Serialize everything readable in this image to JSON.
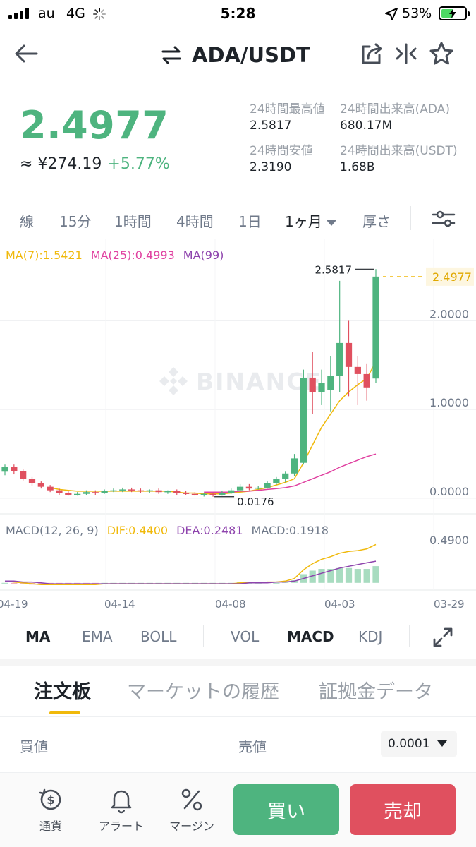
{
  "status_bar": {
    "carrier": "au",
    "network": "4G",
    "time": "5:28",
    "battery_percent": "53%",
    "battery_level": 0.53
  },
  "header": {
    "pair": "ADA/USDT",
    "icons": [
      "back-arrow-icon",
      "swap-icon",
      "share-icon",
      "compare-icon",
      "star-icon"
    ]
  },
  "ticker": {
    "last_price": "2.4977",
    "fiat_price": "≈ ¥274.19",
    "change_percent": "+5.77%",
    "stats": {
      "high_label": "24時間最高値",
      "high_value": "2.5817",
      "low_label": "24時間安値",
      "low_value": "2.3190",
      "vol_base_label": "24時間出来高(ADA)",
      "vol_base_value": "680.17M",
      "vol_quote_label": "24時間出来高(USDT)",
      "vol_quote_value": "1.68B"
    }
  },
  "intervals": {
    "items": [
      "線",
      "15分",
      "1時間",
      "4時間",
      "1日",
      "1ヶ月",
      "厚さ"
    ],
    "active": "1ヶ月"
  },
  "chart": {
    "watermark": "BINANCE",
    "ma_legend": {
      "ma7": "MA(7):1.5421",
      "ma25": "MA(25):0.4993",
      "ma99": "MA(99)"
    },
    "macd_legend": {
      "params": "MACD(12, 26, 9)",
      "dif": "DIF:0.4400",
      "dea": "DEA:0.2481",
      "macd": "MACD:0.1918"
    },
    "price_axis": [
      "2.0000",
      "1.0000",
      "0.0000"
    ],
    "macd_axis": "0.4900",
    "high_marker": "2.5817",
    "low_marker": "0.0176",
    "last_price_tag": "2.4977",
    "date_axis": [
      "04-19",
      "04-14",
      "04-08",
      "04-03",
      "03-29"
    ],
    "colors": {
      "up": "#4eb47f",
      "down": "#e0505f",
      "ma7": "#f0b90b",
      "ma25": "#e040a0",
      "ma99": "#8e44ad"
    }
  },
  "chart_data": {
    "type": "candlestick",
    "price_ylim": [
      0,
      2.6
    ],
    "high": 2.5817,
    "low": 0.0176,
    "last": 2.4977,
    "candles": [
      {
        "o": 0.3,
        "c": 0.35,
        "h": 0.38,
        "l": 0.26
      },
      {
        "o": 0.35,
        "c": 0.31,
        "h": 0.38,
        "l": 0.27
      },
      {
        "o": 0.31,
        "c": 0.22,
        "h": 0.33,
        "l": 0.2
      },
      {
        "o": 0.22,
        "c": 0.17,
        "h": 0.24,
        "l": 0.14
      },
      {
        "o": 0.17,
        "c": 0.13,
        "h": 0.19,
        "l": 0.11
      },
      {
        "o": 0.13,
        "c": 0.09,
        "h": 0.15,
        "l": 0.07
      },
      {
        "o": 0.09,
        "c": 0.06,
        "h": 0.11,
        "l": 0.04
      },
      {
        "o": 0.06,
        "c": 0.04,
        "h": 0.08,
        "l": 0.03
      },
      {
        "o": 0.04,
        "c": 0.05,
        "h": 0.07,
        "l": 0.03
      },
      {
        "o": 0.05,
        "c": 0.07,
        "h": 0.09,
        "l": 0.04
      },
      {
        "o": 0.07,
        "c": 0.06,
        "h": 0.09,
        "l": 0.04
      },
      {
        "o": 0.06,
        "c": 0.08,
        "h": 0.1,
        "l": 0.05
      },
      {
        "o": 0.08,
        "c": 0.09,
        "h": 0.11,
        "l": 0.07
      },
      {
        "o": 0.09,
        "c": 0.1,
        "h": 0.12,
        "l": 0.07
      },
      {
        "o": 0.1,
        "c": 0.09,
        "h": 0.12,
        "l": 0.07
      },
      {
        "o": 0.09,
        "c": 0.08,
        "h": 0.11,
        "l": 0.06
      },
      {
        "o": 0.08,
        "c": 0.09,
        "h": 0.1,
        "l": 0.06
      },
      {
        "o": 0.09,
        "c": 0.07,
        "h": 0.11,
        "l": 0.05
      },
      {
        "o": 0.07,
        "c": 0.08,
        "h": 0.09,
        "l": 0.05
      },
      {
        "o": 0.08,
        "c": 0.06,
        "h": 0.1,
        "l": 0.04
      },
      {
        "o": 0.06,
        "c": 0.05,
        "h": 0.08,
        "l": 0.04
      },
      {
        "o": 0.05,
        "c": 0.04,
        "h": 0.07,
        "l": 0.03
      },
      {
        "o": 0.04,
        "c": 0.05,
        "h": 0.06,
        "l": 0.02
      },
      {
        "o": 0.05,
        "c": 0.04,
        "h": 0.06,
        "l": 0.0176
      },
      {
        "o": 0.04,
        "c": 0.06,
        "h": 0.08,
        "l": 0.03
      },
      {
        "o": 0.06,
        "c": 0.09,
        "h": 0.11,
        "l": 0.05
      },
      {
        "o": 0.09,
        "c": 0.13,
        "h": 0.16,
        "l": 0.08
      },
      {
        "o": 0.13,
        "c": 0.11,
        "h": 0.16,
        "l": 0.09
      },
      {
        "o": 0.11,
        "c": 0.12,
        "h": 0.14,
        "l": 0.1
      },
      {
        "o": 0.12,
        "c": 0.17,
        "h": 0.19,
        "l": 0.11
      },
      {
        "o": 0.17,
        "c": 0.22,
        "h": 0.24,
        "l": 0.15
      },
      {
        "o": 0.22,
        "c": 0.28,
        "h": 0.3,
        "l": 0.18
      },
      {
        "o": 0.28,
        "c": 0.45,
        "h": 0.5,
        "l": 0.25
      },
      {
        "o": 0.4,
        "c": 1.36,
        "h": 1.45,
        "l": 0.38
      },
      {
        "o": 1.36,
        "c": 1.2,
        "h": 1.65,
        "l": 0.95
      },
      {
        "o": 1.2,
        "c": 1.3,
        "h": 1.45,
        "l": 1.05
      },
      {
        "o": 1.22,
        "c": 1.38,
        "h": 1.6,
        "l": 0.98
      },
      {
        "o": 1.38,
        "c": 1.75,
        "h": 2.45,
        "l": 1.2
      },
      {
        "o": 1.75,
        "c": 1.48,
        "h": 2.0,
        "l": 1.15
      },
      {
        "o": 1.48,
        "c": 1.4,
        "h": 1.6,
        "l": 1.05
      },
      {
        "o": 1.4,
        "c": 1.25,
        "h": 1.52,
        "l": 1.1
      },
      {
        "o": 1.35,
        "c": 2.4977,
        "h": 2.5817,
        "l": 1.3
      }
    ],
    "ma7": [
      0.3,
      0.27,
      0.22,
      0.18,
      0.15,
      0.12,
      0.1,
      0.09,
      0.08,
      0.08,
      0.08,
      0.08,
      0.08,
      0.08,
      0.08,
      0.08,
      0.08,
      0.08,
      0.08,
      0.07,
      0.06,
      0.06,
      0.05,
      0.05,
      0.05,
      0.06,
      0.07,
      0.08,
      0.1,
      0.12,
      0.15,
      0.18,
      0.22,
      0.4,
      0.6,
      0.8,
      0.95,
      1.1,
      1.2,
      1.28,
      1.35,
      1.5421
    ],
    "ma25": [
      0.18,
      0.17,
      0.16,
      0.15,
      0.14,
      0.13,
      0.12,
      0.11,
      0.1,
      0.09,
      0.09,
      0.08,
      0.08,
      0.08,
      0.08,
      0.08,
      0.08,
      0.08,
      0.08,
      0.08,
      0.08,
      0.08,
      0.07,
      0.07,
      0.07,
      0.07,
      0.08,
      0.08,
      0.09,
      0.1,
      0.11,
      0.12,
      0.14,
      0.18,
      0.22,
      0.26,
      0.3,
      0.35,
      0.39,
      0.43,
      0.47,
      0.4993
    ],
    "macd_dif": [
      0.02,
      0.01,
      0.0,
      -0.01,
      -0.02,
      -0.02,
      -0.02,
      -0.02,
      -0.02,
      -0.02,
      -0.02,
      -0.01,
      -0.01,
      -0.01,
      -0.01,
      -0.01,
      -0.01,
      -0.01,
      -0.01,
      -0.01,
      -0.01,
      -0.01,
      -0.01,
      -0.01,
      -0.01,
      -0.01,
      0.0,
      0.0,
      0.0,
      0.01,
      0.01,
      0.02,
      0.05,
      0.15,
      0.22,
      0.27,
      0.3,
      0.34,
      0.36,
      0.37,
      0.39,
      0.44
    ],
    "macd_dea": [
      0.02,
      0.02,
      0.01,
      0.01,
      0.0,
      -0.01,
      -0.01,
      -0.01,
      -0.01,
      -0.01,
      -0.01,
      -0.01,
      -0.01,
      -0.01,
      -0.01,
      -0.01,
      -0.01,
      -0.01,
      -0.01,
      -0.01,
      -0.01,
      -0.01,
      -0.01,
      -0.01,
      -0.01,
      -0.01,
      -0.01,
      0.0,
      0.0,
      0.0,
      0.01,
      0.01,
      0.02,
      0.05,
      0.08,
      0.11,
      0.14,
      0.17,
      0.19,
      0.21,
      0.23,
      0.2481
    ],
    "macd_ylim": [
      -0.05,
      0.5
    ],
    "dates": [
      "04-19",
      "04-14",
      "04-08",
      "04-03",
      "03-29"
    ]
  },
  "indicators": {
    "items": [
      "MA",
      "EMA",
      "BOLL",
      "VOL",
      "MACD",
      "KDJ"
    ]
  },
  "orderbook": {
    "tabs": [
      "注文板",
      "マーケットの履歴",
      "証拠金データ"
    ],
    "bid_header": "買値",
    "ask_header": "売値",
    "precision": "0.0001"
  },
  "bottom_bar": {
    "currency_label": "通貨",
    "alert_label": "アラート",
    "margin_label": "マージン",
    "buy_label": "買い",
    "sell_label": "売却"
  }
}
